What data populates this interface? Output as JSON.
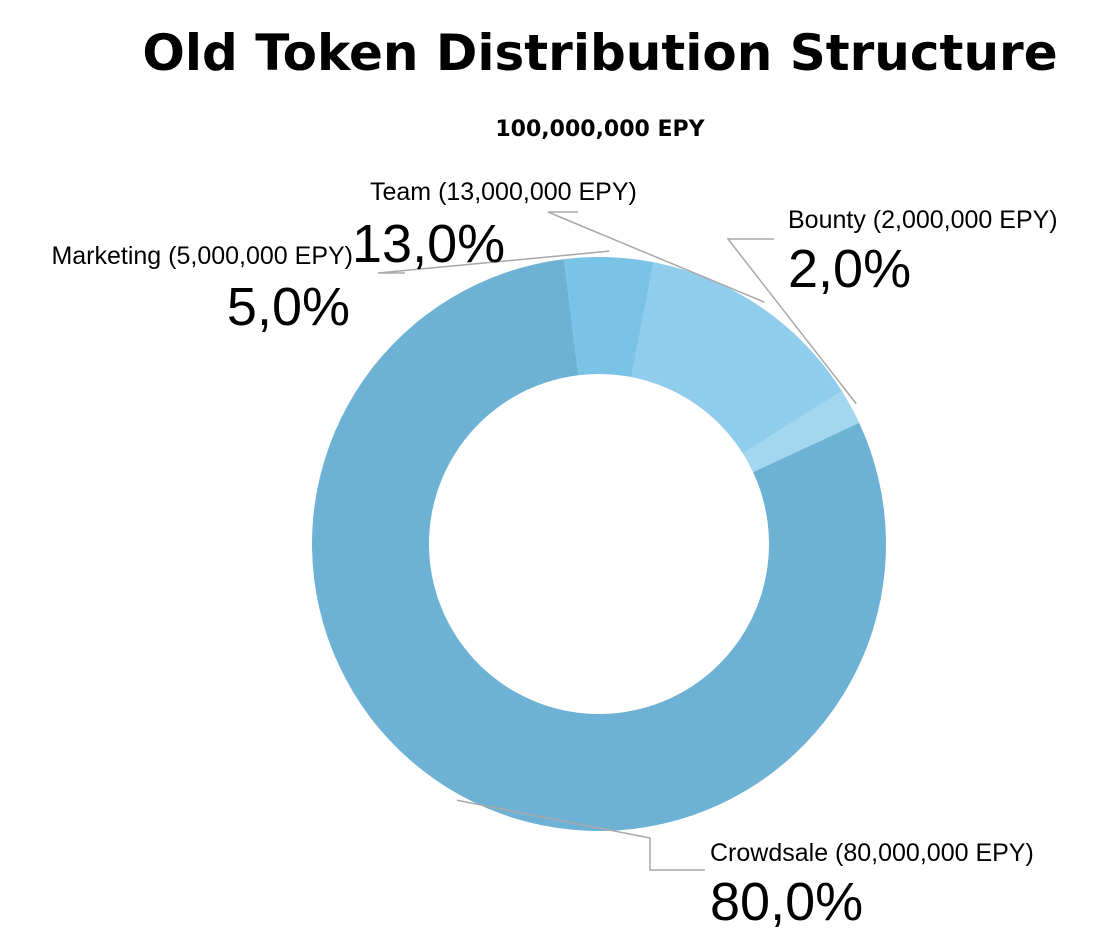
{
  "chart_data": {
    "type": "pie",
    "title": "Old Token Distribution Structure",
    "subtitle": "100,000,000 EPY",
    "slices": [
      {
        "label": "Crowdsale (80,000,000 EPY)",
        "name": "Crowdsale",
        "amount": 80000000,
        "value": 80.0,
        "percent_label": "80,0%",
        "color": "#6db2d4"
      },
      {
        "label": "Marketing (5,000,000 EPY)",
        "name": "Marketing",
        "amount": 5000000,
        "value": 5.0,
        "percent_label": "5,0%",
        "color": "#79c3e6"
      },
      {
        "label": "Team (13,000,000 EPY)",
        "name": "Team",
        "amount": 13000000,
        "value": 13.0,
        "percent_label": "13,0%",
        "color": "#90cdec"
      },
      {
        "label": "Bounty (2,000,000 EPY)",
        "name": "Bounty",
        "amount": 2000000,
        "value": 2.0,
        "percent_label": "2,0%",
        "color": "#a3d6ef"
      }
    ]
  }
}
